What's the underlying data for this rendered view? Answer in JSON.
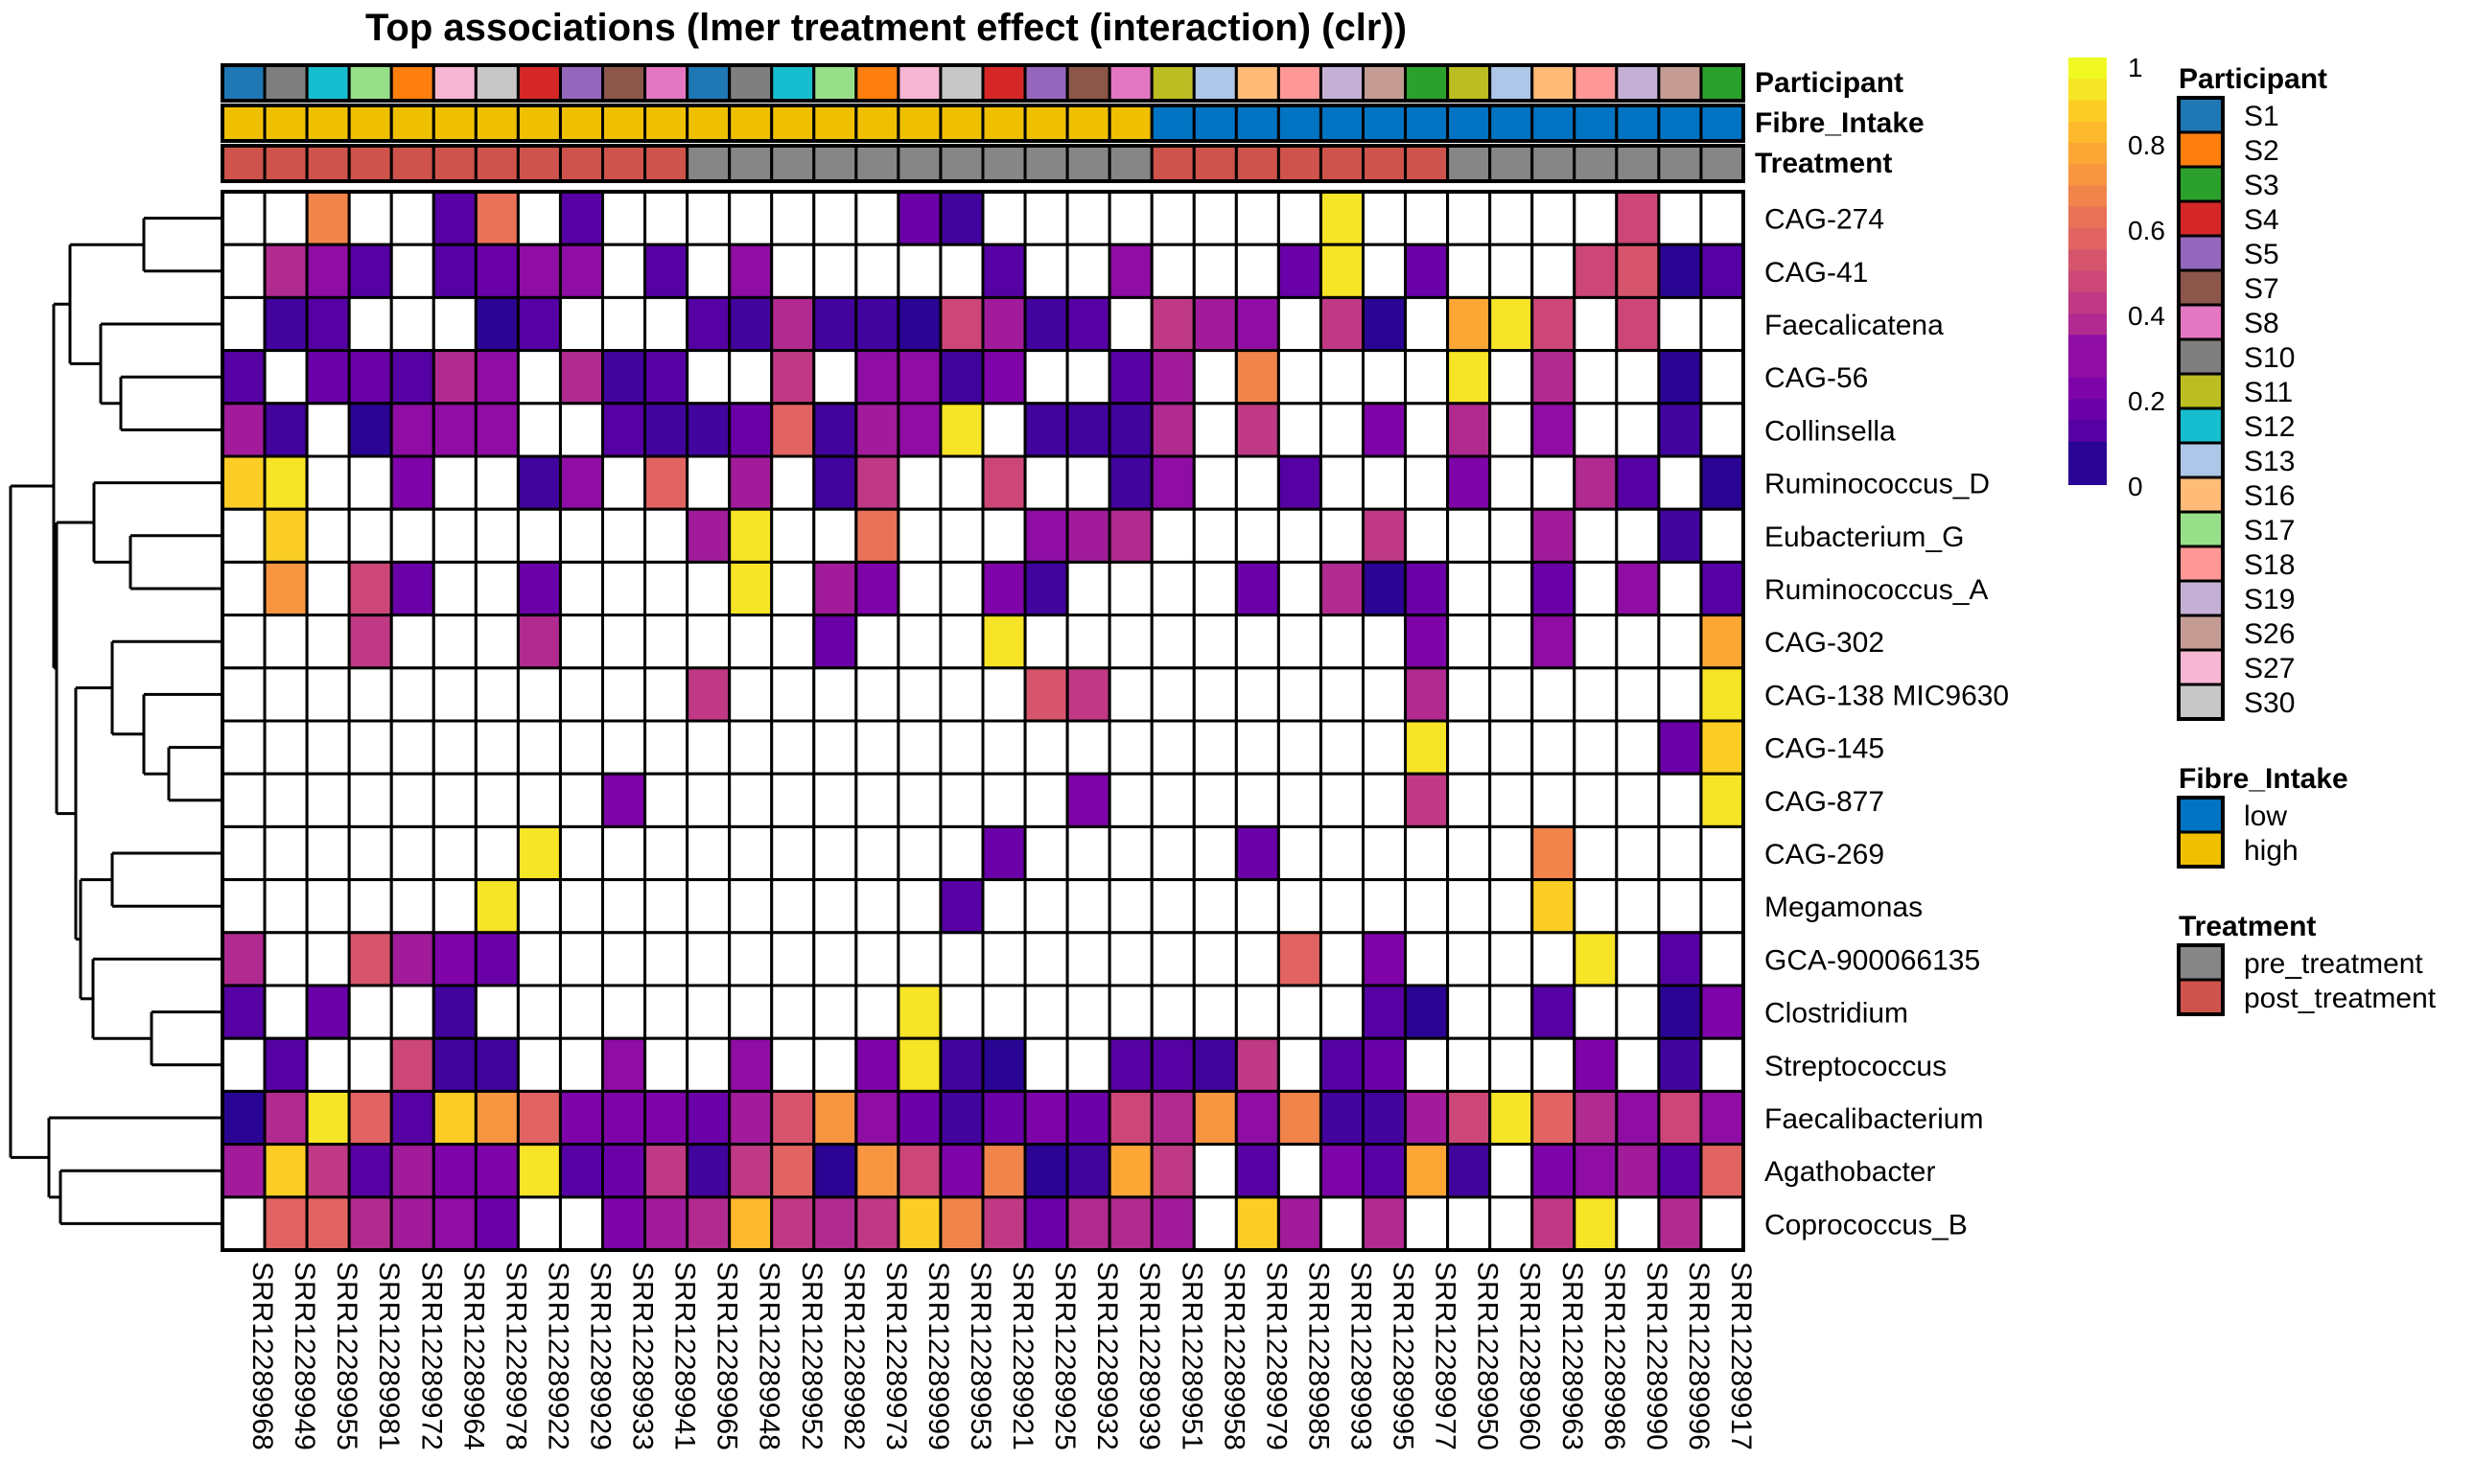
{
  "chart_data": {
    "type": "heatmap",
    "title": "Top associations (lmer treatment effect (interaction) (clr))",
    "columns": [
      "SRR12289968",
      "SRR12289949",
      "SRR12289955",
      "SRR12289981",
      "SRR12289972",
      "SRR12289964",
      "SRR12289978",
      "SRR12289922",
      "SRR12289929",
      "SRR12289933",
      "SRR12289941",
      "SRR12289965",
      "SRR12289948",
      "SRR12289952",
      "SRR12289982",
      "SRR12289973",
      "SRR12289999",
      "SRR12289953",
      "SRR12289921",
      "SRR12289925",
      "SRR12289932",
      "SRR12289939",
      "SRR12289951",
      "SRR12289958",
      "SRR12289979",
      "SRR12289985",
      "SRR12289993",
      "SRR12289995",
      "SRR12289977",
      "SRR12289950",
      "SRR12289960",
      "SRR12289963",
      "SRR12289986",
      "SRR12289990",
      "SRR12289996",
      "SRR12289917"
    ],
    "rows": [
      "CAG-274",
      "CAG-41",
      "Faecalicatena",
      "CAG-56",
      "Collinsella",
      "Ruminococcus_D",
      "Eubacterium_G",
      "Ruminococcus_A",
      "CAG-302",
      "CAG-138 MIC9630",
      "CAG-145",
      "CAG-877",
      "CAG-269",
      "Megamonas",
      "GCA-900066135",
      "Clostridium",
      "Streptococcus",
      "Faecalibacterium",
      "Agathobacter",
      "Coprococcus_B"
    ],
    "values": [
      [
        null,
        null,
        0.72,
        null,
        null,
        0.15,
        0.65,
        null,
        0.15,
        null,
        null,
        null,
        null,
        null,
        null,
        null,
        0.2,
        0.1,
        null,
        null,
        null,
        null,
        null,
        null,
        null,
        null,
        0.97,
        null,
        null,
        null,
        null,
        null,
        null,
        0.52,
        null,
        null
      ],
      [
        null,
        0.42,
        0.28,
        0.15,
        null,
        0.15,
        0.2,
        0.28,
        0.28,
        null,
        0.15,
        null,
        0.28,
        null,
        null,
        null,
        null,
        null,
        0.15,
        null,
        null,
        0.28,
        null,
        null,
        null,
        0.2,
        0.97,
        null,
        0.2,
        null,
        null,
        null,
        0.52,
        0.55,
        0.03,
        0.15
      ],
      [
        null,
        0.1,
        0.15,
        null,
        null,
        null,
        0.03,
        0.15,
        null,
        null,
        null,
        0.15,
        0.12,
        0.42,
        0.1,
        0.1,
        0.03,
        0.5,
        0.35,
        0.12,
        0.15,
        null,
        0.45,
        0.35,
        0.28,
        null,
        0.45,
        0.03,
        null,
        0.78,
        0.97,
        0.5,
        null,
        0.5,
        null,
        null
      ],
      [
        0.15,
        null,
        0.2,
        0.2,
        0.15,
        0.4,
        0.28,
        null,
        0.4,
        0.1,
        0.15,
        null,
        null,
        0.45,
        null,
        0.3,
        0.3,
        0.1,
        0.25,
        null,
        null,
        0.15,
        0.35,
        null,
        0.72,
        null,
        null,
        null,
        null,
        0.97,
        null,
        0.42,
        null,
        null,
        0.03,
        null
      ],
      [
        0.35,
        0.1,
        null,
        0.03,
        0.28,
        0.28,
        0.28,
        null,
        null,
        0.15,
        0.1,
        0.1,
        0.2,
        0.6,
        0.1,
        0.35,
        0.3,
        0.97,
        null,
        0.1,
        0.1,
        0.1,
        0.4,
        null,
        0.45,
        null,
        null,
        0.25,
        null,
        0.42,
        null,
        0.28,
        null,
        null,
        0.1,
        null
      ],
      [
        0.9,
        0.97,
        null,
        null,
        0.25,
        null,
        null,
        0.1,
        0.28,
        null,
        0.62,
        null,
        0.35,
        null,
        0.1,
        0.45,
        null,
        null,
        0.52,
        null,
        null,
        0.1,
        0.3,
        null,
        null,
        0.15,
        null,
        null,
        null,
        0.25,
        null,
        null,
        0.42,
        0.15,
        null,
        0.03
      ],
      [
        null,
        0.88,
        null,
        null,
        null,
        null,
        null,
        null,
        null,
        null,
        null,
        0.35,
        0.97,
        null,
        null,
        0.65,
        null,
        null,
        null,
        0.3,
        0.35,
        0.4,
        null,
        null,
        null,
        null,
        null,
        0.45,
        null,
        null,
        null,
        0.35,
        null,
        null,
        0.1,
        null
      ],
      [
        null,
        0.75,
        null,
        0.5,
        0.2,
        null,
        null,
        0.2,
        null,
        null,
        null,
        null,
        0.97,
        null,
        0.35,
        0.25,
        null,
        null,
        0.25,
        0.1,
        null,
        null,
        null,
        null,
        0.2,
        null,
        0.4,
        0.03,
        0.2,
        null,
        null,
        0.2,
        null,
        0.3,
        null,
        0.15
      ],
      [
        null,
        null,
        null,
        0.45,
        null,
        null,
        null,
        0.4,
        null,
        null,
        null,
        null,
        null,
        null,
        0.2,
        null,
        null,
        null,
        0.97,
        null,
        null,
        null,
        null,
        null,
        null,
        null,
        null,
        null,
        0.25,
        null,
        null,
        0.3,
        null,
        null,
        null,
        0.78
      ],
      [
        null,
        null,
        null,
        null,
        null,
        null,
        null,
        null,
        null,
        null,
        null,
        0.45,
        null,
        null,
        null,
        null,
        null,
        null,
        null,
        0.55,
        0.45,
        null,
        null,
        null,
        null,
        null,
        null,
        null,
        0.42,
        null,
        null,
        null,
        null,
        null,
        null,
        0.97
      ],
      [
        null,
        null,
        null,
        null,
        null,
        null,
        null,
        null,
        null,
        null,
        null,
        null,
        null,
        null,
        null,
        null,
        null,
        null,
        null,
        null,
        null,
        null,
        null,
        null,
        null,
        null,
        null,
        null,
        0.97,
        null,
        null,
        null,
        null,
        null,
        0.2,
        0.92
      ],
      [
        null,
        null,
        null,
        null,
        null,
        null,
        null,
        null,
        null,
        0.25,
        null,
        null,
        null,
        null,
        null,
        null,
        null,
        null,
        null,
        null,
        0.25,
        null,
        null,
        null,
        null,
        null,
        null,
        null,
        0.45,
        null,
        null,
        null,
        null,
        null,
        null,
        0.97
      ],
      [
        null,
        null,
        null,
        null,
        null,
        null,
        null,
        0.97,
        null,
        null,
        null,
        null,
        null,
        null,
        null,
        null,
        null,
        null,
        0.2,
        null,
        null,
        null,
        null,
        null,
        0.2,
        null,
        null,
        null,
        null,
        null,
        null,
        0.72,
        null,
        null,
        null,
        null
      ],
      [
        null,
        null,
        null,
        null,
        null,
        null,
        0.97,
        null,
        null,
        null,
        null,
        null,
        null,
        null,
        null,
        null,
        null,
        0.15,
        null,
        null,
        null,
        null,
        null,
        null,
        null,
        null,
        null,
        null,
        null,
        null,
        null,
        0.92,
        null,
        null,
        null,
        null
      ],
      [
        0.4,
        null,
        null,
        0.55,
        0.35,
        0.25,
        0.2,
        null,
        null,
        null,
        null,
        null,
        null,
        null,
        null,
        null,
        null,
        null,
        null,
        null,
        null,
        null,
        null,
        null,
        null,
        0.62,
        null,
        0.25,
        null,
        null,
        null,
        null,
        0.97,
        null,
        0.15,
        null
      ],
      [
        0.15,
        null,
        0.2,
        null,
        null,
        0.1,
        null,
        null,
        null,
        null,
        null,
        null,
        null,
        null,
        null,
        null,
        0.97,
        null,
        null,
        null,
        null,
        null,
        null,
        null,
        null,
        null,
        null,
        0.15,
        0.03,
        null,
        null,
        0.15,
        null,
        null,
        0.03,
        0.25
      ],
      [
        null,
        0.15,
        null,
        null,
        0.5,
        0.1,
        0.1,
        null,
        null,
        0.3,
        null,
        null,
        0.3,
        null,
        null,
        0.25,
        0.97,
        0.1,
        0.03,
        null,
        null,
        0.15,
        0.15,
        0.1,
        0.45,
        null,
        0.15,
        0.2,
        null,
        null,
        null,
        null,
        0.25,
        null,
        0.1,
        null
      ],
      [
        0.03,
        0.4,
        0.97,
        0.62,
        0.15,
        0.92,
        0.75,
        0.62,
        0.25,
        0.25,
        0.25,
        0.2,
        0.35,
        0.55,
        0.75,
        0.3,
        0.2,
        0.1,
        0.2,
        0.25,
        0.2,
        0.5,
        0.4,
        0.75,
        0.3,
        0.68,
        0.1,
        0.1,
        0.35,
        0.52,
        0.97,
        0.62,
        0.4,
        0.3,
        0.52,
        0.3
      ],
      [
        0.35,
        0.88,
        0.45,
        0.15,
        0.35,
        0.25,
        0.25,
        0.97,
        0.15,
        0.2,
        0.45,
        0.1,
        0.45,
        0.62,
        0.03,
        0.75,
        0.52,
        0.25,
        0.72,
        0.03,
        0.1,
        0.8,
        0.45,
        null,
        0.15,
        null,
        0.25,
        0.15,
        0.8,
        0.1,
        null,
        0.25,
        0.3,
        0.35,
        0.15,
        0.62
      ],
      [
        null,
        0.62,
        0.62,
        0.4,
        0.35,
        0.3,
        0.2,
        null,
        null,
        0.25,
        0.35,
        0.4,
        0.85,
        0.45,
        0.4,
        0.45,
        0.88,
        0.72,
        0.45,
        0.2,
        0.4,
        0.4,
        0.35,
        null,
        0.92,
        0.35,
        null,
        0.4,
        null,
        null,
        null,
        0.45,
        0.97,
        null,
        0.4,
        null
      ]
    ],
    "colorbar": {
      "min": 0,
      "max": 1,
      "ticks": [
        "0",
        "0.2",
        "0.4",
        "0.6",
        "0.8",
        "1"
      ],
      "palette": "plasma"
    },
    "annotation_tracks": [
      {
        "name": "Participant",
        "values": [
          "S1",
          "S10",
          "S12",
          "S17",
          "S2",
          "S27",
          "S30",
          "S4",
          "S5",
          "S7",
          "S8",
          "S1",
          "S10",
          "S12",
          "S17",
          "S2",
          "S27",
          "S30",
          "S4",
          "S5",
          "S7",
          "S8",
          "S11",
          "S13",
          "S16",
          "S18",
          "S19",
          "S26",
          "S3",
          "S11",
          "S13",
          "S16",
          "S18",
          "S19",
          "S26",
          "S3"
        ]
      },
      {
        "name": "Fibre_Intake",
        "values": [
          "high",
          "high",
          "high",
          "high",
          "high",
          "high",
          "high",
          "high",
          "high",
          "high",
          "high",
          "high",
          "high",
          "high",
          "high",
          "high",
          "high",
          "high",
          "high",
          "high",
          "high",
          "high",
          "low",
          "low",
          "low",
          "low",
          "low",
          "low",
          "low",
          "low",
          "low",
          "low",
          "low",
          "low",
          "low",
          "low"
        ]
      },
      {
        "name": "Treatment",
        "values": [
          "post_treatment",
          "post_treatment",
          "post_treatment",
          "post_treatment",
          "post_treatment",
          "post_treatment",
          "post_treatment",
          "post_treatment",
          "post_treatment",
          "post_treatment",
          "post_treatment",
          "pre_treatment",
          "pre_treatment",
          "pre_treatment",
          "pre_treatment",
          "pre_treatment",
          "pre_treatment",
          "pre_treatment",
          "pre_treatment",
          "pre_treatment",
          "pre_treatment",
          "pre_treatment",
          "post_treatment",
          "post_treatment",
          "post_treatment",
          "post_treatment",
          "post_treatment",
          "post_treatment",
          "post_treatment",
          "pre_treatment",
          "pre_treatment",
          "pre_treatment",
          "pre_treatment",
          "pre_treatment",
          "pre_treatment",
          "pre_treatment"
        ]
      }
    ],
    "legends": [
      {
        "title": "Participant",
        "items": [
          {
            "label": "S1",
            "color": "#1f77b4"
          },
          {
            "label": "S2",
            "color": "#ff7f0e"
          },
          {
            "label": "S3",
            "color": "#2ca02c"
          },
          {
            "label": "S4",
            "color": "#d62728"
          },
          {
            "label": "S5",
            "color": "#9467bd"
          },
          {
            "label": "S7",
            "color": "#8c564b"
          },
          {
            "label": "S8",
            "color": "#e377c2"
          },
          {
            "label": "S10",
            "color": "#7f7f7f"
          },
          {
            "label": "S11",
            "color": "#bcbd22"
          },
          {
            "label": "S12",
            "color": "#17becf"
          },
          {
            "label": "S13",
            "color": "#aec7e8"
          },
          {
            "label": "S16",
            "color": "#ffbb78"
          },
          {
            "label": "S17",
            "color": "#98df8a"
          },
          {
            "label": "S18",
            "color": "#ff9896"
          },
          {
            "label": "S19",
            "color": "#c5b0d5"
          },
          {
            "label": "S26",
            "color": "#c49c94"
          },
          {
            "label": "S27",
            "color": "#f7b6d2"
          },
          {
            "label": "S30",
            "color": "#c7c7c7"
          }
        ]
      },
      {
        "title": "Fibre_Intake",
        "items": [
          {
            "label": "low",
            "color": "#0073c2"
          },
          {
            "label": "high",
            "color": "#efc000"
          }
        ]
      },
      {
        "title": "Treatment",
        "items": [
          {
            "label": "pre_treatment",
            "color": "#868686"
          },
          {
            "label": "post_treatment",
            "color": "#cd534c"
          }
        ]
      }
    ],
    "row_dendrogram": "hierarchical clustering (left)"
  }
}
